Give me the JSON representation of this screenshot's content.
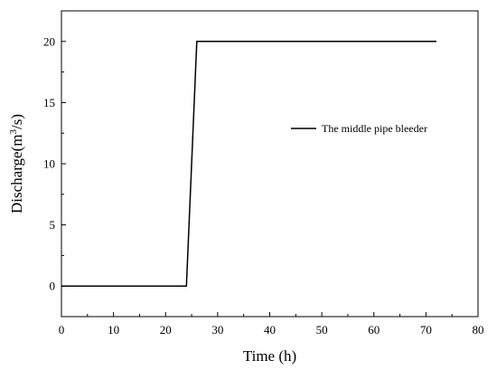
{
  "chart_data": {
    "type": "line",
    "xlabel": "Time (h)",
    "ylabel_main": "Discharge(m",
    "ylabel_sup": "3",
    "ylabel_tail": "/s)",
    "xlim": [
      0,
      80
    ],
    "ylim": [
      -2.5,
      22.5
    ],
    "xticks": [
      0,
      10,
      20,
      30,
      40,
      50,
      60,
      70,
      80
    ],
    "yticks": [
      0,
      5,
      10,
      15,
      20
    ],
    "grid": false,
    "legend_position": "right-middle",
    "line_color": "#000000",
    "series": [
      {
        "name": "The middle pipe bleeder",
        "x": [
          0,
          24,
          26,
          72
        ],
        "y": [
          0,
          0,
          20,
          20
        ]
      }
    ]
  }
}
